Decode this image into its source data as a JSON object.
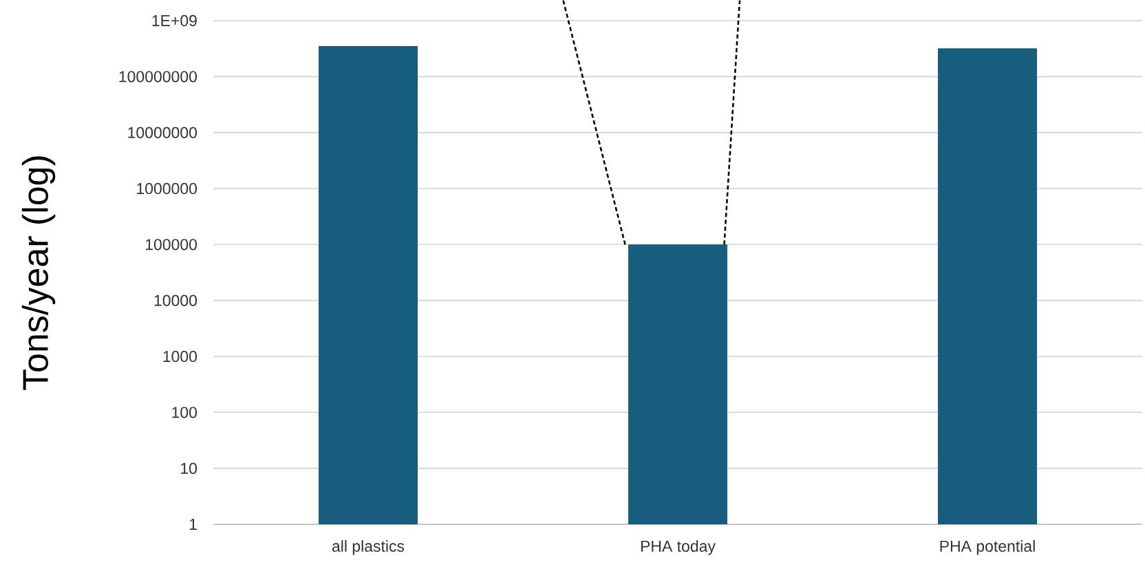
{
  "chart_data": {
    "type": "bar",
    "ylabel": "Tons/year (log)",
    "categories": [
      "all plastics",
      "PHA today",
      "PHA potential"
    ],
    "values": [
      350000000,
      100000,
      320000000
    ],
    "color": "#175e7e",
    "log": true,
    "ylim": [
      1,
      1000000000
    ],
    "yticks": [
      1,
      10,
      100,
      1000,
      10000,
      100000,
      1000000,
      10000000,
      100000000,
      {
        "value": 1000000000,
        "label": "1E+09"
      }
    ],
    "grid": "y"
  }
}
